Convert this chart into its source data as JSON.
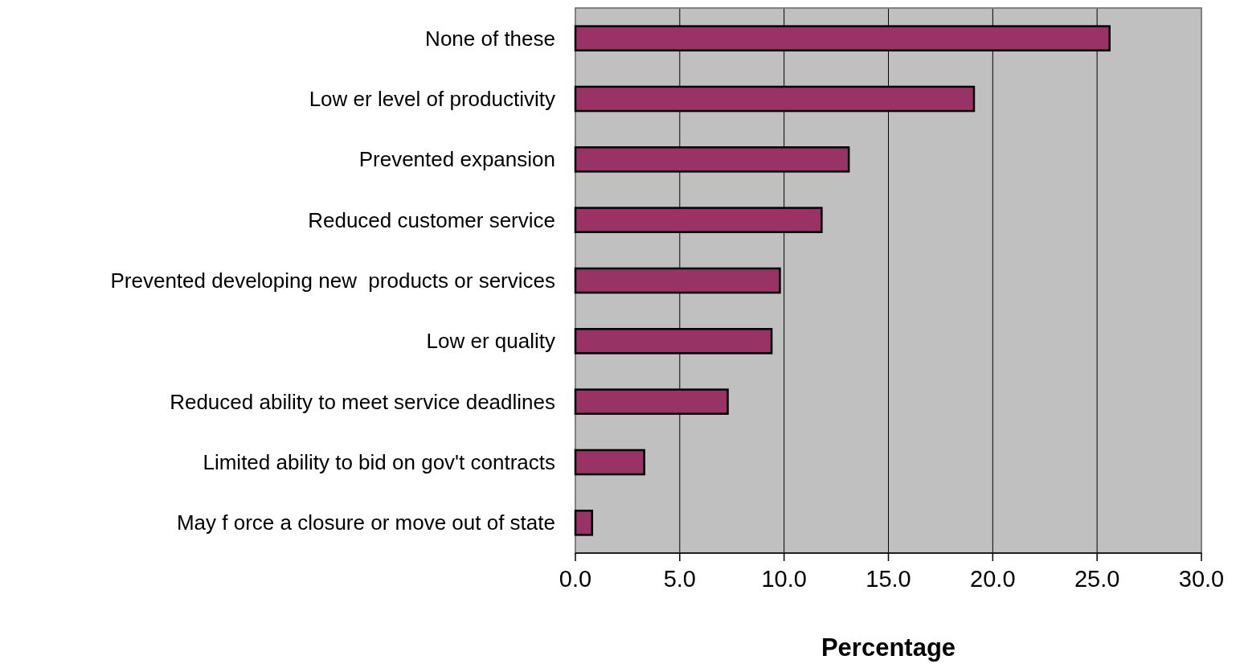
{
  "chart_data": {
    "type": "bar",
    "orientation": "horizontal",
    "xlabel": "Percentage",
    "categories": [
      "None of these",
      "Low er level of productivity",
      "Prevented expansion",
      "Reduced customer service",
      "Prevented developing new  products or services",
      "Low er quality",
      "Reduced ability to meet service deadlines",
      "Limited ability to bid on gov't contracts",
      "May f orce a closure or move out of state"
    ],
    "values": [
      25.6,
      19.1,
      13.1,
      11.8,
      9.8,
      9.4,
      7.3,
      3.3,
      0.8
    ],
    "color": "#993366",
    "xlim": [
      0,
      30
    ],
    "xticks": [
      {
        "value": 0,
        "label": "0.0"
      },
      {
        "value": 5,
        "label": "5.0"
      },
      {
        "value": 10,
        "label": "10.0"
      },
      {
        "value": 15,
        "label": "15.0"
      },
      {
        "value": 20,
        "label": "20.0"
      },
      {
        "value": 25,
        "label": "25.0"
      },
      {
        "value": 30,
        "label": "30.0"
      }
    ],
    "grid": "x"
  }
}
